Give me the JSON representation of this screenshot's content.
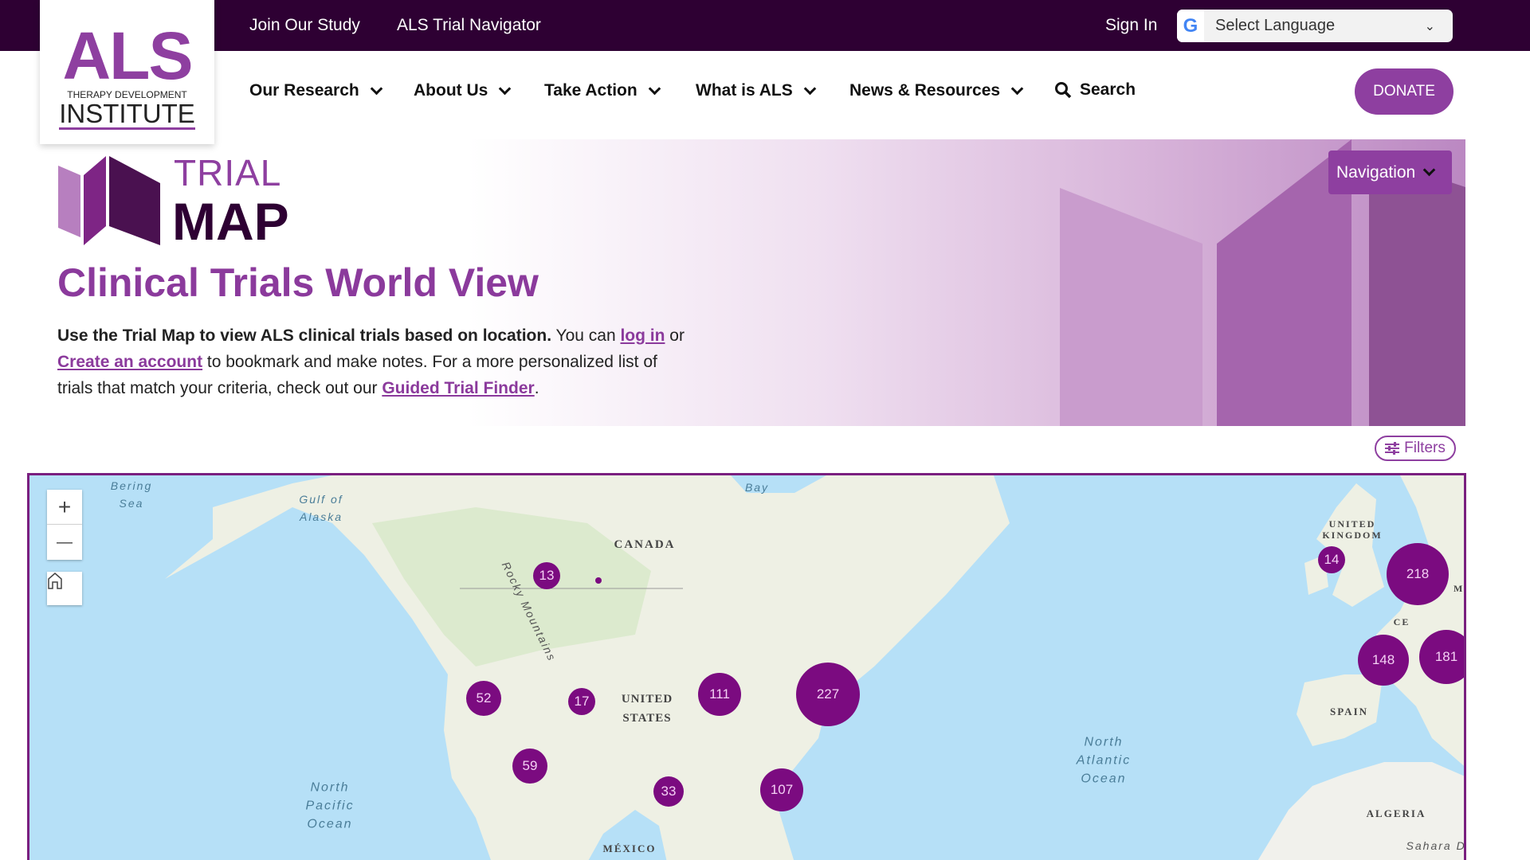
{
  "topbar": {
    "links": [
      "Join Our Study",
      "ALS Trial Navigator"
    ],
    "sign_in": "Sign In",
    "language": {
      "selected": "Select Language",
      "icon": "google-icon"
    }
  },
  "logo": {
    "als": "ALS",
    "line2": "THERAPY DEVELOPMENT",
    "line3": "INSTITUTE"
  },
  "nav": {
    "items": [
      "Our Research",
      "About Us",
      "Take Action",
      "What is ALS",
      "News & Resources"
    ],
    "search": "Search",
    "donate": "DONATE"
  },
  "banner": {
    "navigation": "Navigation",
    "trial": "TRIAL",
    "map": "MAP",
    "colors": {
      "accent": "#8e3fa0",
      "dark": "#2e0033"
    }
  },
  "page": {
    "title": "Clinical Trials World View",
    "intro_bold": "Use the Trial Map to view ALS clinical trials based on location.",
    "intro_1": " You can ",
    "login_link": "log in",
    "intro_2": " or ",
    "create_link": "Create an account",
    "intro_3": " to bookmark and make notes. For a more personalized list of trials that match your criteria, check out our ",
    "finder_link": "Guided Trial Finder",
    "intro_4": "."
  },
  "map": {
    "filters": "Filters",
    "zoom_in": "+",
    "zoom_out": "—",
    "clusters": [
      {
        "count": "13"
      },
      {
        "count": "52"
      },
      {
        "count": "17"
      },
      {
        "count": "111"
      },
      {
        "count": "227"
      },
      {
        "count": "59"
      },
      {
        "count": "33"
      },
      {
        "count": "107"
      },
      {
        "count": "14"
      },
      {
        "count": "218"
      },
      {
        "count": "148"
      },
      {
        "count": "181"
      }
    ],
    "labels": {
      "bering": "Bering\nSea",
      "gulf": "Gulf of\nAlaska",
      "bay": "Bay",
      "npo": "North\nPacific\nOcean",
      "nao": "North\nAtlantic\nOcean",
      "rocky": "Rocky Mountains",
      "sahara": "Sahara De"
    },
    "countries": {
      "canada": "CANADA",
      "us": "UNITED\nSTATES",
      "mexico": "MÉXICO",
      "uk": "UNITED\nKINGDOM",
      "spain": "SPAIN",
      "algeria": "ALGERIA",
      "france": "CE",
      "germany": "MA"
    },
    "cluster_color": "#7b0b80"
  }
}
